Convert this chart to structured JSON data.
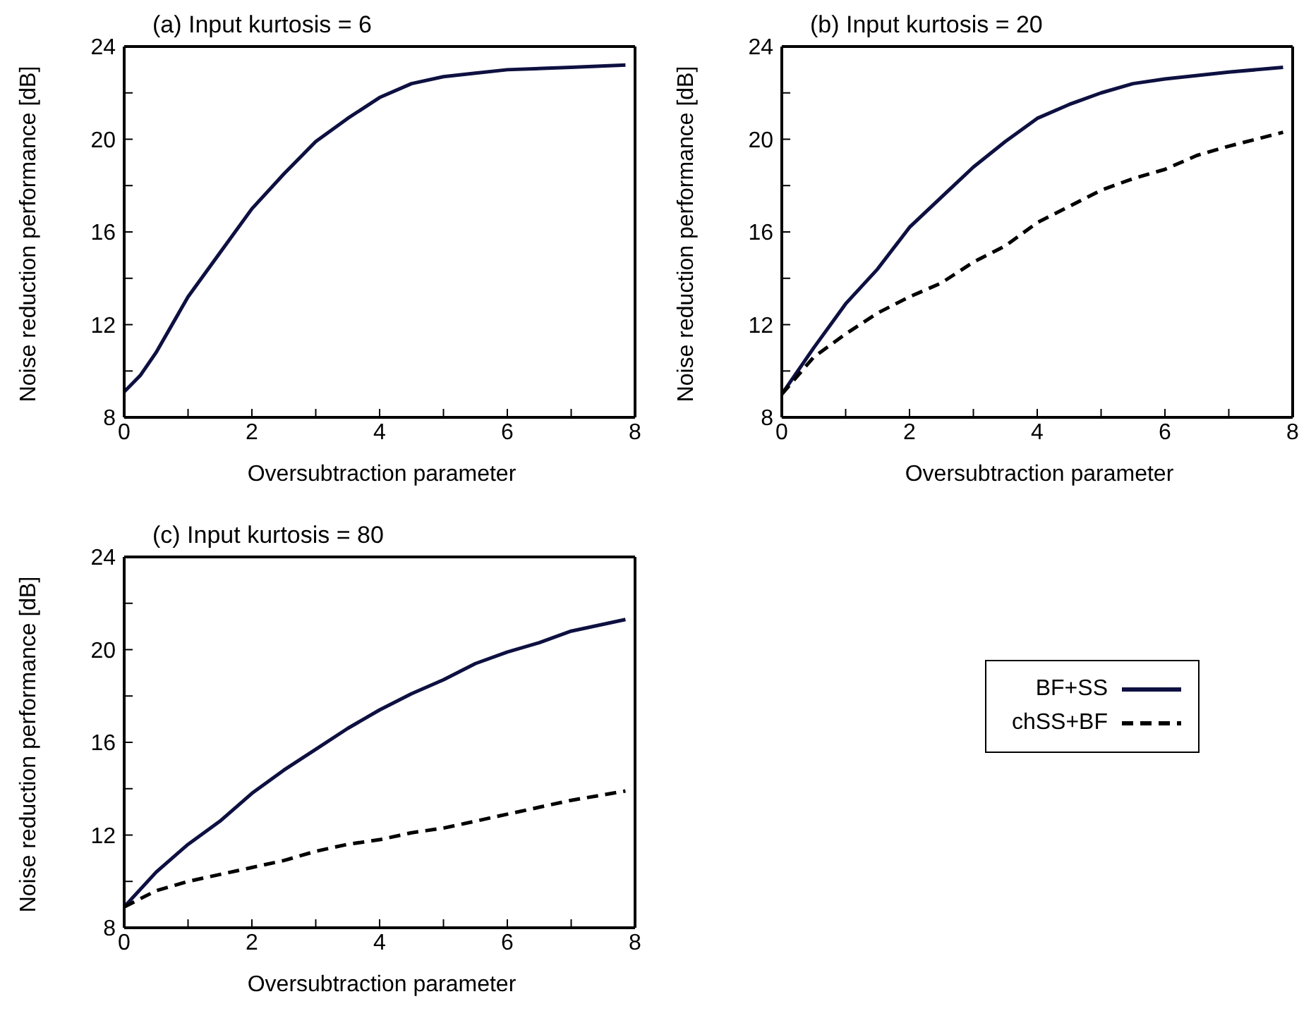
{
  "chart_data": [
    {
      "type": "line",
      "title": "(a) Input kurtosis = 6",
      "xlabel": "Oversubtraction parameter",
      "ylabel": "Noise reduction performance [dB]",
      "xlim": [
        0,
        8
      ],
      "ylim": [
        8,
        24
      ],
      "xticks": [
        0,
        {
          "value": 1,
          "label": null
        },
        2,
        {
          "value": 3,
          "label": null
        },
        4,
        {
          "value": 5,
          "label": null
        },
        6,
        {
          "value": 7,
          "label": null
        },
        8
      ],
      "yticks": [
        8,
        {
          "value": 10,
          "label": null
        },
        12,
        {
          "value": 14,
          "label": null
        },
        16,
        {
          "value": 18,
          "label": null
        },
        20,
        {
          "value": 22,
          "label": null
        },
        24
      ],
      "grid": false,
      "marker": "none",
      "series": [
        {
          "color": "#0d1040",
          "line_style": "solid",
          "x": [
            0,
            0.25,
            0.5,
            1,
            1.5,
            2,
            2.5,
            3,
            3.5,
            4,
            4.5,
            5,
            5.5,
            6,
            7,
            7.85
          ],
          "values": [
            9.1,
            9.8,
            10.8,
            13.2,
            15.1,
            17.0,
            18.5,
            19.9,
            20.9,
            21.8,
            22.4,
            22.7,
            22.85,
            23.0,
            23.1,
            23.2
          ]
        }
      ]
    },
    {
      "type": "line",
      "title": "(b) Input kurtosis = 20",
      "xlabel": "Oversubtraction parameter",
      "ylabel": "Noise reduction performance [dB]",
      "xlim": [
        0,
        8
      ],
      "ylim": [
        8,
        24
      ],
      "xticks": [
        0,
        {
          "value": 1,
          "label": null
        },
        2,
        {
          "value": 3,
          "label": null
        },
        4,
        {
          "value": 5,
          "label": null
        },
        6,
        {
          "value": 7,
          "label": null
        },
        8
      ],
      "yticks": [
        8,
        {
          "value": 10,
          "label": null
        },
        12,
        {
          "value": 14,
          "label": null
        },
        16,
        {
          "value": 18,
          "label": null
        },
        20,
        {
          "value": 22,
          "label": null
        },
        24
      ],
      "grid": false,
      "marker": "none",
      "series": [
        {
          "color": "#0d1040",
          "line_style": "solid",
          "x": [
            0,
            0.5,
            1,
            1.5,
            2,
            2.5,
            3,
            3.5,
            4,
            4.5,
            5,
            5.5,
            6,
            7,
            7.85
          ],
          "values": [
            9.0,
            11.0,
            12.9,
            14.4,
            16.2,
            17.5,
            18.8,
            19.9,
            20.9,
            21.5,
            22.0,
            22.4,
            22.6,
            22.9,
            23.1
          ]
        },
        {
          "color": "#000000",
          "line_style": "dashed",
          "x": [
            0,
            0.5,
            1,
            1.5,
            2,
            2.5,
            3,
            3.5,
            4,
            4.5,
            5,
            5.5,
            6,
            6.5,
            7,
            7.85
          ],
          "values": [
            9.0,
            10.6,
            11.6,
            12.5,
            13.2,
            13.8,
            14.7,
            15.4,
            16.4,
            17.1,
            17.8,
            18.3,
            18.7,
            19.3,
            19.7,
            20.3
          ]
        }
      ]
    },
    {
      "type": "line",
      "title": "(c) Input kurtosis = 80",
      "xlabel": "Oversubtraction parameter",
      "ylabel": "Noise reduction performance [dB]",
      "xlim": [
        0,
        8
      ],
      "ylim": [
        8,
        24
      ],
      "xticks": [
        0,
        {
          "value": 1,
          "label": null
        },
        2,
        {
          "value": 3,
          "label": null
        },
        4,
        {
          "value": 5,
          "label": null
        },
        6,
        {
          "value": 7,
          "label": null
        },
        8
      ],
      "yticks": [
        8,
        {
          "value": 10,
          "label": null
        },
        12,
        {
          "value": 14,
          "label": null
        },
        16,
        {
          "value": 18,
          "label": null
        },
        20,
        {
          "value": 22,
          "label": null
        },
        24
      ],
      "grid": false,
      "marker": "none",
      "legend": "right",
      "series": [
        {
          "name": "BF+SS",
          "color": "#0d1040",
          "line_style": "solid",
          "x": [
            0,
            0.5,
            1,
            1.5,
            2,
            2.5,
            3,
            3.5,
            4,
            4.5,
            5,
            5.5,
            6,
            6.5,
            7,
            7.85
          ],
          "values": [
            8.9,
            10.4,
            11.6,
            12.6,
            13.8,
            14.8,
            15.7,
            16.6,
            17.4,
            18.1,
            18.7,
            19.4,
            19.9,
            20.3,
            20.8,
            21.3
          ]
        },
        {
          "name": "chSS+BF",
          "color": "#000000",
          "line_style": "dashed",
          "x": [
            0,
            0.5,
            1,
            1.5,
            2,
            2.5,
            3,
            3.5,
            4,
            4.5,
            5,
            5.5,
            6,
            6.5,
            7,
            7.85
          ],
          "values": [
            8.9,
            9.6,
            10.0,
            10.3,
            10.6,
            10.9,
            11.3,
            11.6,
            11.8,
            12.1,
            12.3,
            12.6,
            12.9,
            13.2,
            13.5,
            13.9
          ]
        }
      ]
    }
  ]
}
